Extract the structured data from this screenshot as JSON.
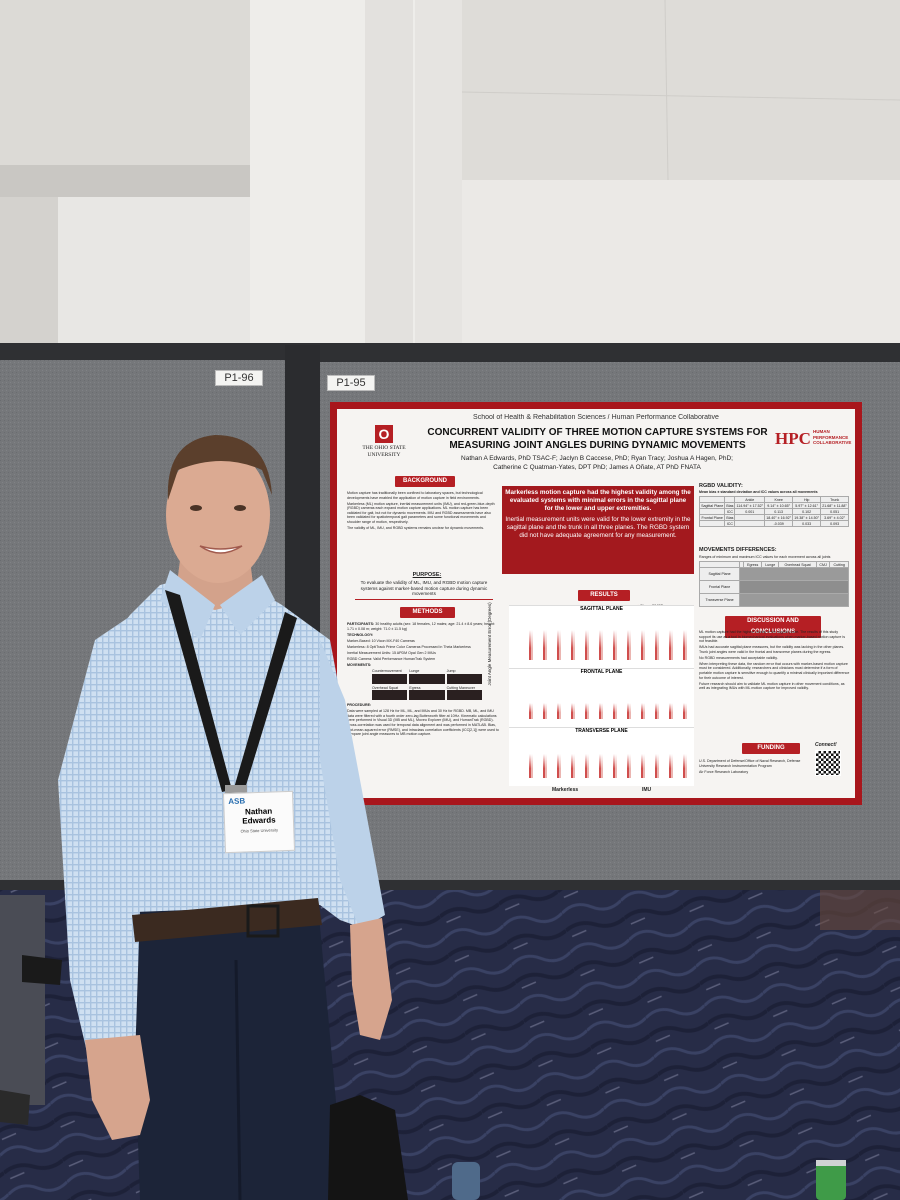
{
  "board_labels": [
    "P1-96",
    "P1-95"
  ],
  "poster": {
    "department": "School of Health & Rehabilitation Sciences / Human Performance Collaborative",
    "university": "THE OHIO STATE UNIVERSITY",
    "logo_mark": "O",
    "hpc_logo": "HPC",
    "hpc_logo_sub": "HUMAN PERFORMANCE COLLABORATIVE",
    "title": "CONCURRENT VALIDITY OF THREE MOTION CAPTURE SYSTEMS FOR MEASURING JOINT ANGLES DURING DYNAMIC MOVEMENTS",
    "authors": [
      "Nathan A Edwards, PhD TSAC-F; Jaclyn B Caccese, PhD; Ryan Tracy; Joshua A Hagen, PhD;",
      "Catherine C Quatman-Yates, DPT PhD; James A Oñate, AT PhD FNATA"
    ],
    "background": {
      "heading": "BACKGROUND",
      "bullets": [
        "Motion capture has traditionally been confined to laboratory spaces, but technological developments have enabled the application of motion capture in field environments.",
        "Markerless (ML) motion capture, inertial measurement units (IMU), and red-green-blue-depth (RGBD) cameras each expand motion capture applications. ML motion capture has been validated for gait, but not for dynamic movements. IMU and RGBD assessments have also been validated for spatiotemporal gait parameters and some functional movements and shoulder range of motion, respectively.",
        "The validity of ML, IMU, and RGBD systems remains unclear for dynamic movements."
      ]
    },
    "purpose": {
      "heading": "PURPOSE:",
      "text": "To evaluate the validity of ML, IMU, and RGBD motion capture systems against marker-based motion capture during dynamic movements"
    },
    "methods": {
      "heading": "METHODS",
      "participants_label": "PARTICIPANTS:",
      "participants": "30 healthy adults (sex: 18 females, 12 males; age: 21.4 ± 8.6 years; height: 1.71 ± 0.08 m; weight: 71.0 ± 11.5 kg)",
      "technology_label": "TECHNOLOGY:",
      "technology": [
        "Marker-Based: 10 Vicon MX-F40 Cameras",
        "Markerless: 8 OptiTrack Prime Color Cameras Processed in Theia Markerless",
        "Inertial Measurement Units: 15 APDM Opal Gen 2 IMUs",
        "RGBD Camera: Valid Performance HumanTrak System"
      ],
      "movements_label": "MOVEMENTS:",
      "movements": [
        "Countermovement",
        "Lunge",
        "Jump",
        "Overhead Squat",
        "Egress",
        "Cutting Maneuver"
      ],
      "procedure_label": "PROCEDURE:",
      "procedure": "Data were sampled at 128 Hz for ML, ML, and IMUs and 30 Hz for RGBD. MB, ML, and IMU data were filtered with a fourth order zero-lag Butterworth filter at 10Hz. Kinematic calculations were performed in Visual 3D (MB and ML), Moveo Explorer (IMU), and HumanTrak (RGBD). Cross-correlation was used for temporal data alignment and was performed in MATLAB. Bias, root-mean-squared error (RMSE), and intraclass correlation coefficients (ICC[2,1]) were used to compare joint angle measures to MB motion capture."
    },
    "highlight": [
      "Markerless motion capture had the highest validity among the evaluated systems with minimal errors in the sagittal plane for the lower and upper extremities.",
      "Inertial measurement units were valid for the lower extremity in the sagittal plane and the trunk in all three planes. The RGBD system did not have adequate agreement for any measurement."
    ],
    "results": {
      "heading": "RESULTS",
      "legend": [
        "Bias",
        "RMSE"
      ],
      "y_axis": "Joint Angle Measurement Error (Degrees)",
      "panels": [
        "SAGITTAL PLANE",
        "FRONTAL PLANE",
        "TRANSVERSE PLANE"
      ],
      "groups": [
        "Markerless",
        "IMU"
      ]
    },
    "rgbd": {
      "heading": "RGBD VALIDITY:",
      "caption": "Mean bias ± standard deviation and ICC values across all movements",
      "columns": [
        "Ankle",
        "Knee",
        "Hip",
        "Trunk"
      ],
      "rows": [
        [
          "Sagittal Plane",
          "Bias",
          "114.94° ± 17.52°",
          "9.14° ± 10.65°",
          "5.97° ± 12.61°",
          "21.68° ± 11.88°"
        ],
        [
          "",
          "ICC",
          "0.001",
          "0.113",
          "0.102",
          "0.051"
        ],
        [
          "Frontal Plane",
          "Bias",
          "",
          "18.40° ± 16.92°",
          "19.38° ± 14.50°",
          "3.69° ± 4.02°"
        ],
        [
          "",
          "ICC",
          "",
          "-0.039",
          "0.033",
          "0.093"
        ]
      ]
    },
    "movement_differences": {
      "heading": "MOVEMENTS DIFFERENCES:",
      "caption": "Ranges of minimum and maximum ICC values for each movement across all joints",
      "columns": [
        "Egress",
        "Lunge",
        "Overhead Squat",
        "CMJ",
        "Cutting"
      ],
      "rows": [
        "Sagittal Plane",
        "Frontal Plane",
        "Transverse Plane"
      ]
    },
    "discussion": {
      "heading": "DISCUSSION AND CONCLUSIONS",
      "bullets": [
        "ML motion capture had the highest validity in the sagittal plane. The results of this study support its use as a tool in biomechanical evaluations when marker-based motion capture is not feasible.",
        "IMUs had accurate sagittal plane measures, but the validity was lacking in the other planes. Trunk joint angles were valid in the frontal and transverse planes during the egress.",
        "No RGBD measurements had acceptable validity.",
        "When interpreting these data, the random error that occurs with marker-based motion capture must be considered. Additionally, researchers and clinicians must determine if a form of portable motion capture is sensitive enough to quantify a minimal clinically important difference for their outcome of interest.",
        "Future research should aim to validate ML motion capture in other movement conditions, as well as integrating IMUs with ML motion capture for improved validity."
      ]
    },
    "funding": {
      "heading": "FUNDING",
      "lines": [
        "U.S. Department of Defense/Office of Naval Research, Defense University Research Instrumentation Program",
        "Air Force Research Laboratory"
      ],
      "connect": "Connect!"
    }
  },
  "badge": {
    "logo": "ASB",
    "name": "Nathan Edwards",
    "affiliation": "Ohio State University"
  }
}
